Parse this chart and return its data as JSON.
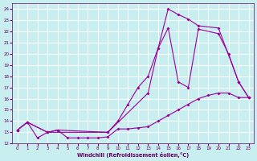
{
  "xlabel": "Windchill (Refroidissement éolien,°C)",
  "bg_color": "#c8eef0",
  "grid_color": "#b0d8dc",
  "line_color": "#990099",
  "x_ticks": [
    0,
    1,
    2,
    3,
    4,
    5,
    6,
    7,
    8,
    9,
    10,
    11,
    12,
    13,
    14,
    15,
    16,
    17,
    18,
    19,
    20,
    21,
    22,
    23
  ],
  "ylim": [
    12,
    24.5
  ],
  "xlim": [
    -0.5,
    23.5
  ],
  "yticks": [
    12,
    13,
    14,
    15,
    16,
    17,
    18,
    19,
    20,
    21,
    22,
    23,
    24
  ],
  "line1_x": [
    0,
    1,
    2,
    3,
    4,
    5,
    6,
    7,
    8,
    9,
    10,
    11,
    12,
    13,
    14,
    15,
    16,
    17,
    18,
    19,
    20,
    21,
    22,
    23
  ],
  "line1_y": [
    13.2,
    13.9,
    12.5,
    13.0,
    13.2,
    12.5,
    12.5,
    12.5,
    12.5,
    12.6,
    13.3,
    13.3,
    13.4,
    13.5,
    14.0,
    14.5,
    15.0,
    15.5,
    16.0,
    16.3,
    16.5,
    16.5,
    16.1,
    16.1
  ],
  "line2_x": [
    0,
    1,
    3,
    4,
    9,
    10,
    11,
    12,
    13,
    14,
    15,
    16,
    17,
    18,
    20,
    21,
    22,
    23
  ],
  "line2_y": [
    13.2,
    13.9,
    13.0,
    13.2,
    13.0,
    14.0,
    15.5,
    17.0,
    18.0,
    20.5,
    22.3,
    17.5,
    17.0,
    22.2,
    21.8,
    20.0,
    17.5,
    16.1
  ],
  "line3_x": [
    0,
    1,
    3,
    9,
    13,
    14,
    15,
    16,
    17,
    18,
    20,
    22,
    23
  ],
  "line3_y": [
    13.2,
    13.9,
    13.0,
    13.0,
    16.5,
    20.5,
    24.0,
    23.5,
    23.1,
    22.5,
    22.3,
    17.5,
    16.1
  ]
}
